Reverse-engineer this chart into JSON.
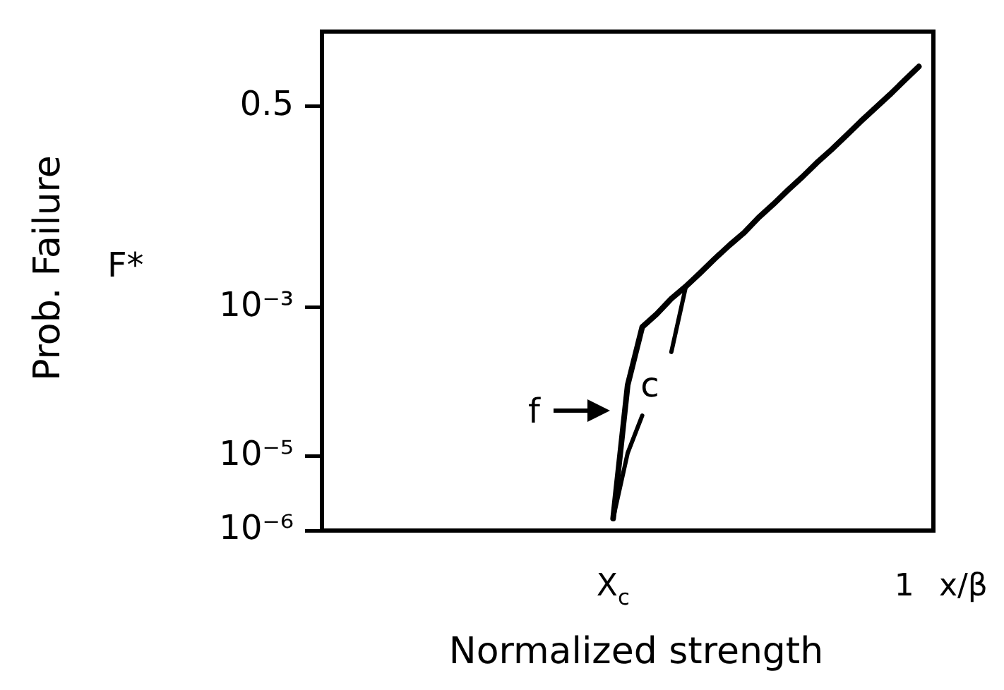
{
  "chart_data": {
    "type": "line",
    "xlabel": "Normalized strength",
    "ylabel": "Prob. Failure",
    "log": "y",
    "grid": false,
    "legend": false,
    "marker": "none",
    "line_style": "solid",
    "categories": [
      null,
      null,
      null,
      null,
      null,
      null,
      null,
      null,
      null,
      null,
      null,
      null,
      null,
      null,
      null,
      null,
      null,
      null,
      null,
      null,
      "X$_{c}$",
      null,
      null,
      null,
      null,
      null,
      null,
      null,
      null,
      null,
      null,
      null,
      null,
      null,
      null,
      null,
      null,
      null,
      null,
      null,
      "1",
      null,
      null
    ],
    "ylim": [
      1e-06,
      5
    ],
    "yticks": [
      {
        "value": 1e-06,
        "label": "10⁻⁶"
      },
      {
        "value": 1e-05,
        "label": "10⁻⁵"
      },
      {
        "value": 0.001,
        "label": "10⁻³"
      },
      0.5
    ],
    "series": [
      {
        "color": "#000000",
        "values": [
          null,
          null,
          null,
          null,
          null,
          null,
          null,
          null,
          null,
          null,
          null,
          null,
          null,
          null,
          null,
          null,
          null,
          null,
          null,
          null,
          1.45e-06,
          9e-05,
          0.00054,
          0.00081,
          0.0013,
          0.0019,
          0.0029,
          0.0045,
          0.0068,
          0.01,
          0.016,
          0.024,
          0.037,
          0.056,
          0.087,
          0.13,
          0.2,
          0.31,
          0.47,
          0.71,
          1.1,
          1.7,
          null
        ]
      },
      {
        "color": "#000000",
        "values": [
          null,
          null,
          null,
          null,
          null,
          null,
          null,
          null,
          null,
          null,
          null,
          null,
          null,
          null,
          null,
          null,
          null,
          null,
          null,
          null,
          1.45e-06,
          1.1e-05,
          3.5e-05,
          null,
          0.00025,
          0.0019,
          null,
          null,
          null,
          null,
          null,
          null,
          null,
          null,
          null,
          null,
          null,
          null,
          null,
          null,
          null,
          null,
          null
        ]
      }
    ],
    "annotations": [
      "F*",
      "f",
      "c",
      "x/β"
    ]
  }
}
